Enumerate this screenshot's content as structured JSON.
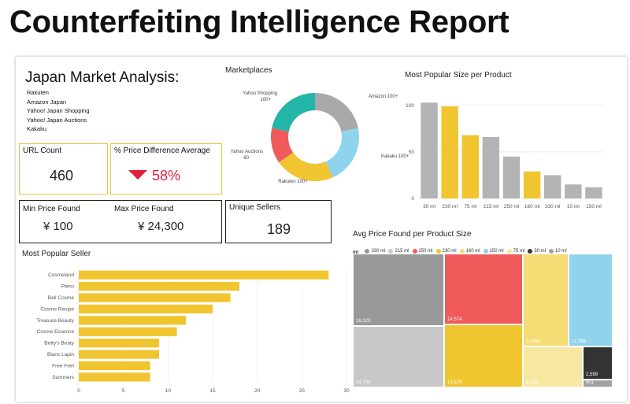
{
  "report_title": "Counterfeiting Intelligence Report",
  "japan": {
    "title": "Japan Market Analysis:",
    "marketplaces": [
      "Rakuten",
      "Amazon Japan",
      "Yahoo! Japan Shopping",
      "Yahoo! Japan Auctions",
      "Kakaku"
    ]
  },
  "cards": {
    "url_count": {
      "label": "URL Count",
      "value": "460"
    },
    "price_diff": {
      "label": "% Price Difference Average",
      "value": "58%"
    },
    "min_price": {
      "label": "Min Price Found",
      "value": "¥ 100"
    },
    "max_price": {
      "label": "Max Price Found",
      "value": "¥ 24,300"
    },
    "unique_sellers": {
      "label": "Unique Sellers",
      "value": "189"
    }
  },
  "colors": {
    "yellow": "#f0c530",
    "gray": "#b3b3b3",
    "red": "#ef5b5b",
    "teal": "#22b5a8",
    "blue": "#8fd4ec",
    "darkgray": "#999999",
    "down_arrow": "#e0203a"
  },
  "chart_data": [
    {
      "id": "marketplaces",
      "type": "pie",
      "title": "Marketplaces",
      "slices": [
        {
          "label": "Amazon 100+",
          "value": 100,
          "color": "#a9a9a9"
        },
        {
          "label": "Kakaku 100+",
          "value": 100,
          "color": "#8fd4ec"
        },
        {
          "label": "Rakuten 100+",
          "value": 100,
          "color": "#f0c530"
        },
        {
          "label": "Yahoo Auctions 60",
          "value": 60,
          "color": "#ef5b5b"
        },
        {
          "label": "Yahoo Shopping 100+",
          "value": 100,
          "color": "#22b5a8"
        }
      ]
    },
    {
      "id": "popular_size",
      "type": "bar",
      "title": "Most Popular Size per Product",
      "categories": [
        "30 ml",
        "230 ml",
        "75 ml",
        "215 ml",
        "250 ml",
        "160 ml",
        "330 ml",
        "10 ml",
        "150 ml"
      ],
      "values": [
        103,
        99,
        68,
        66,
        45,
        29,
        25,
        15,
        12
      ],
      "colors": [
        "#b3b3b3",
        "#f0c530",
        "#f0c530",
        "#b3b3b3",
        "#b3b3b3",
        "#f0c530",
        "#b3b3b3",
        "#b3b3b3",
        "#b3b3b3"
      ],
      "yticks": [
        0,
        50,
        100
      ],
      "ylim": [
        0,
        110
      ]
    },
    {
      "id": "popular_seller",
      "type": "bar",
      "orientation": "horizontal",
      "title": "Most Popular Seller",
      "categories": [
        "Cosmeland",
        "Pierci",
        "Bell Cosme",
        "Cosme Recipe",
        "Treasure Beauty",
        "Cosme Essence",
        "Betty's Beaty",
        "Blanc Lapin",
        "Free Feel",
        "Summers"
      ],
      "values": [
        28,
        18,
        17,
        15,
        12,
        11,
        9,
        9,
        8,
        8
      ],
      "xticks": [
        0,
        5,
        10,
        15,
        20,
        25,
        30
      ],
      "xlim": [
        0,
        30
      ],
      "color": "#f0c530"
    },
    {
      "id": "avg_price",
      "type": "heatmap",
      "title": "Avg Price Found per Product Size",
      "legend_title": "ml",
      "legend": [
        {
          "label": "330 ml",
          "color": "#999999"
        },
        {
          "label": "215 ml",
          "color": "#c8c8c8"
        },
        {
          "label": "250 ml",
          "color": "#ef5b5b"
        },
        {
          "label": "230 ml",
          "color": "#f0c530"
        },
        {
          "label": "160 ml",
          "color": "#f5dc75"
        },
        {
          "label": "150 ml",
          "color": "#8fd4ec"
        },
        {
          "label": "75 ml",
          "color": "#f8e7a0"
        },
        {
          "label": "30 ml",
          "color": "#333333"
        },
        {
          "label": "10 ml",
          "color": "#a0a0a0"
        }
      ],
      "tiles": [
        {
          "size": "330 ml",
          "value": "18,123",
          "color": "#999999"
        },
        {
          "size": "215 ml",
          "value": "14,704",
          "color": "#c8c8c8"
        },
        {
          "size": "250 ml",
          "value": "14,574",
          "color": "#ef5b5b"
        },
        {
          "size": "230 ml",
          "value": "13,579",
          "color": "#f0c530"
        },
        {
          "size": "160 ml",
          "value": "11,690",
          "color": "#f5dc75"
        },
        {
          "size": "150 ml",
          "value": "11,358",
          "color": "#8fd4ec"
        },
        {
          "size": "75 ml",
          "value": "8,230",
          "color": "#f8e7a0"
        },
        {
          "size": "30 ml",
          "value": "2,599",
          "color": "#333333"
        },
        {
          "size": "10 ml",
          "value": "601",
          "color": "#a0a0a0"
        }
      ]
    }
  ]
}
